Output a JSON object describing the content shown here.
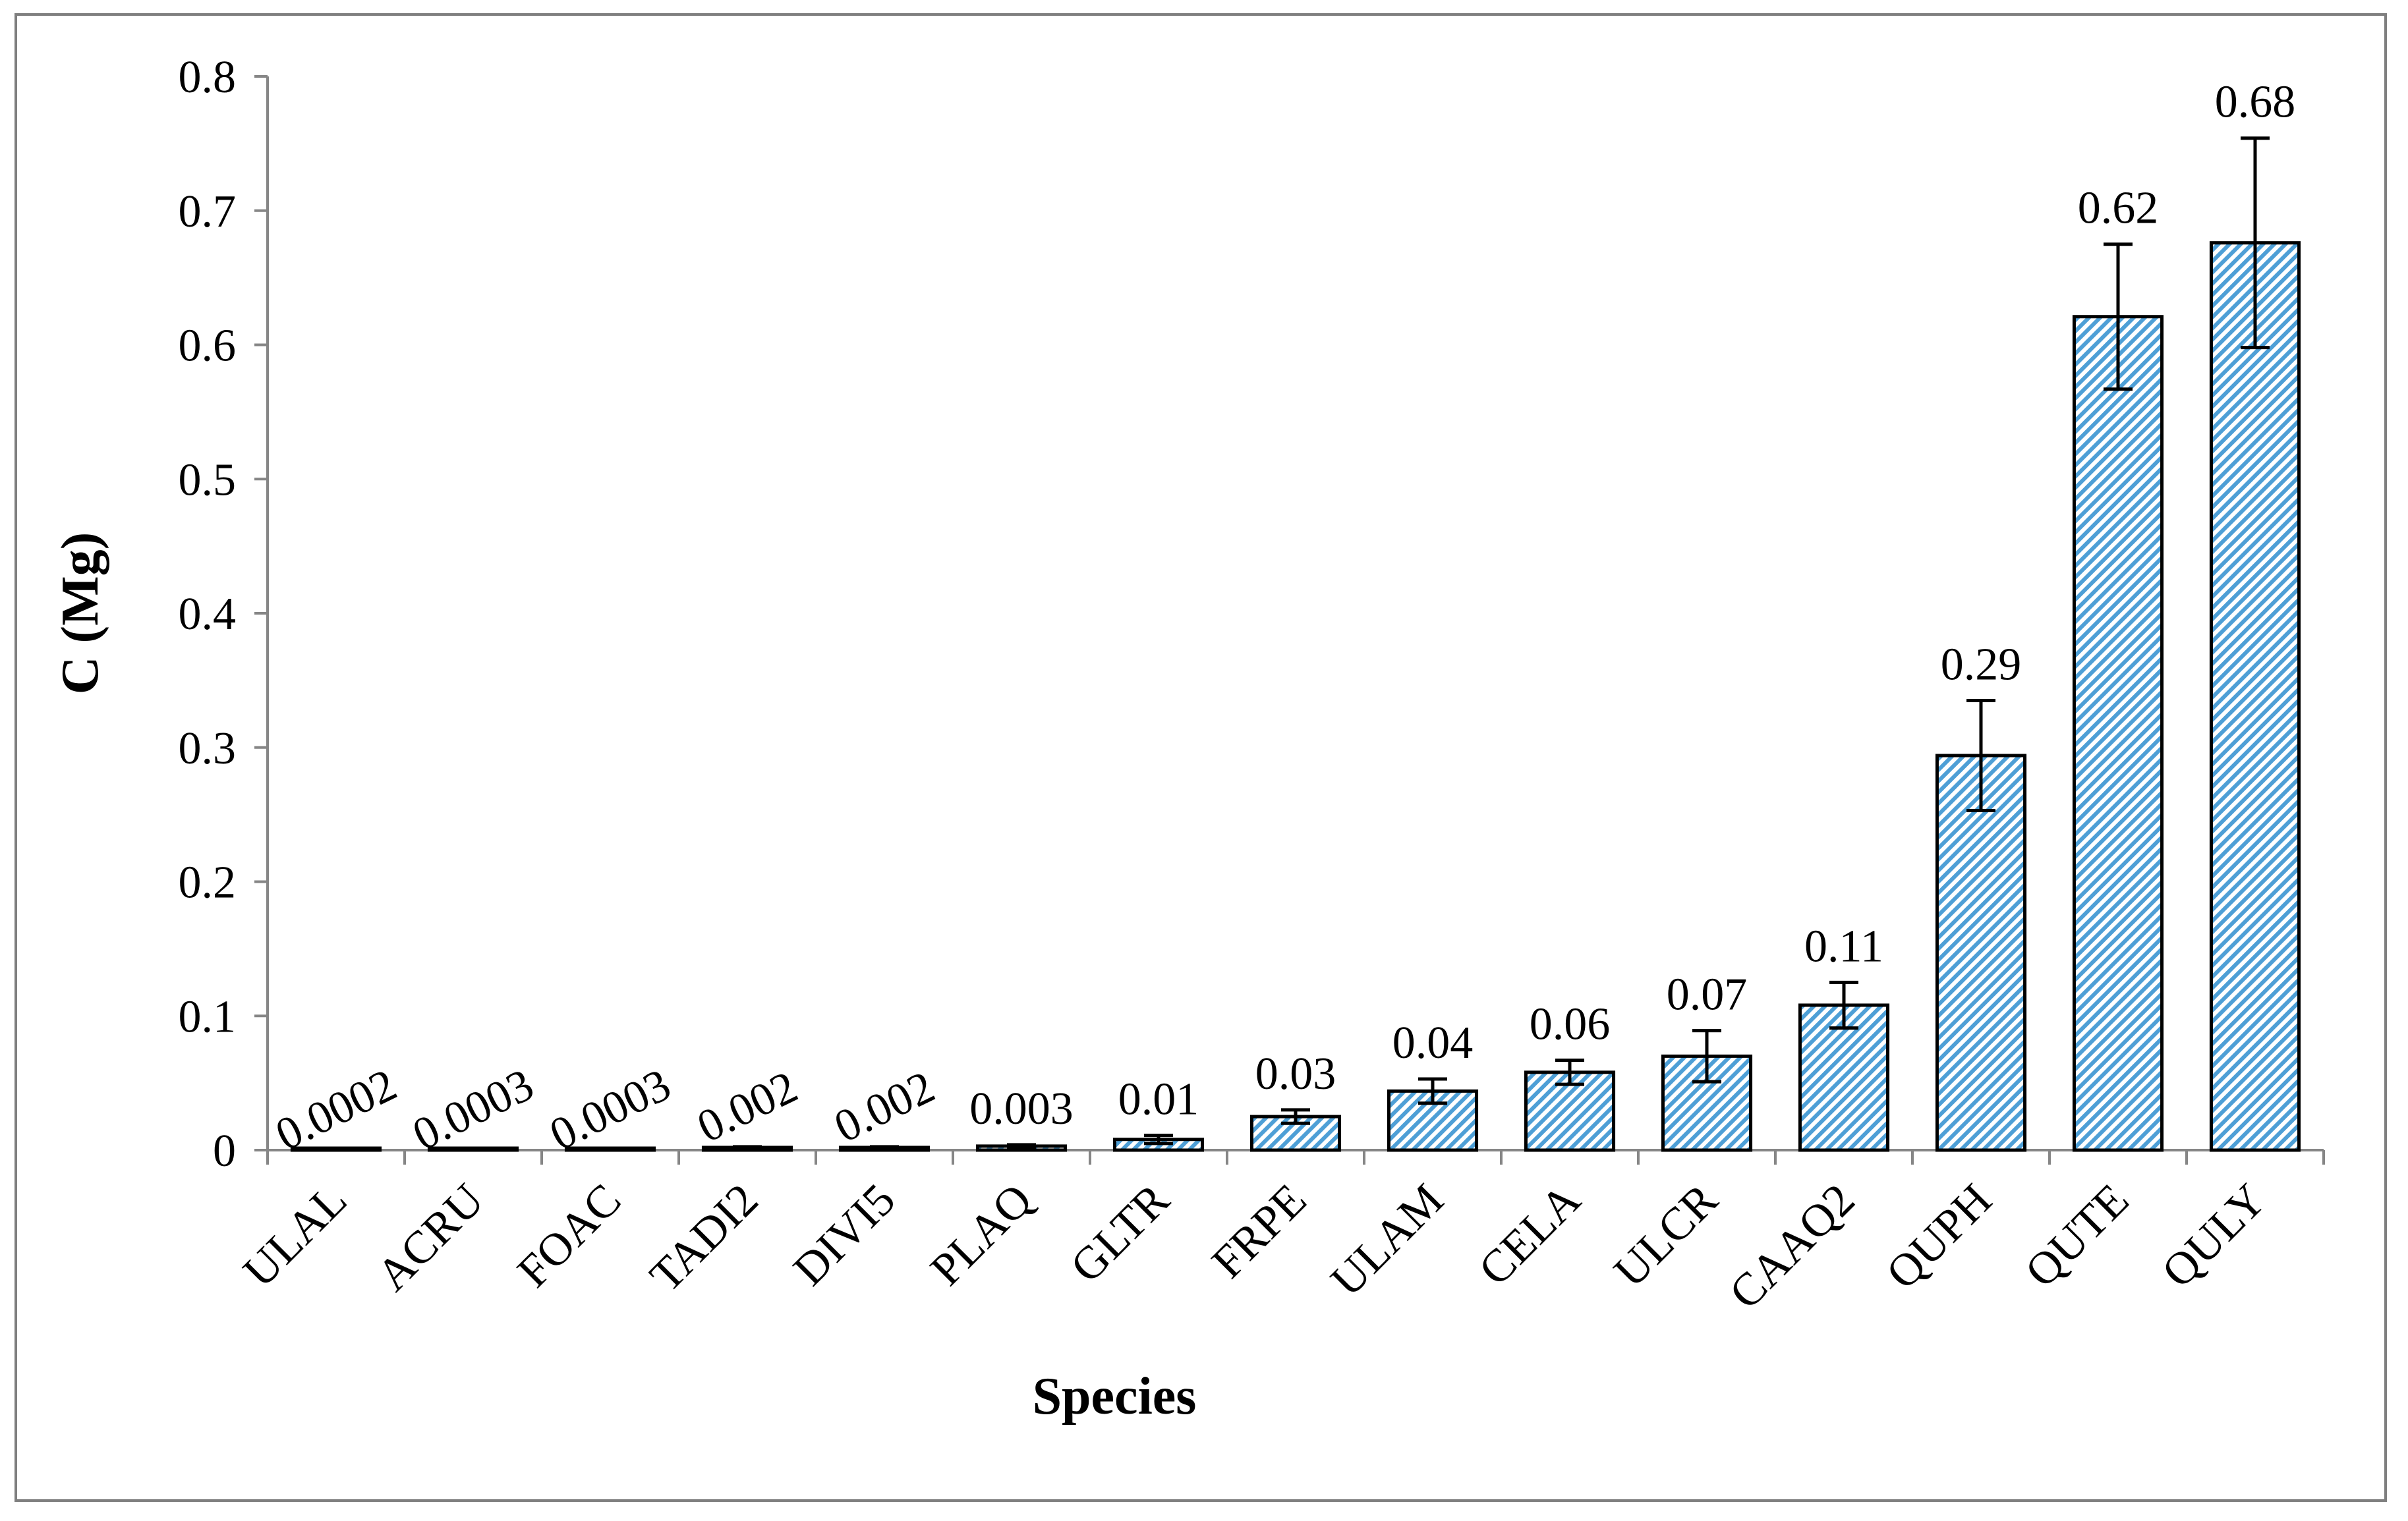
{
  "chart_data": {
    "type": "bar",
    "title": "",
    "xlabel": "Species",
    "ylabel": "C (Mg)",
    "ylim": [
      0,
      0.8
    ],
    "yticks": [
      0,
      0.1,
      0.2,
      0.3,
      0.4,
      0.5,
      0.6,
      0.7,
      0.8
    ],
    "ytick_labels": [
      "0",
      "0.1",
      "0.2",
      "0.3",
      "0.4",
      "0.5",
      "0.6",
      "0.7",
      "0.8"
    ],
    "grid": false,
    "bar_color": "#4e9fd6",
    "bar_pattern": "diagonal-hatch",
    "categories": [
      "ULAL",
      "ACRU",
      "FOAC",
      "TADI2",
      "DIVI5",
      "PLAQ",
      "GLTR",
      "FRPE",
      "ULAM",
      "CELA",
      "ULCR",
      "CAAQ2",
      "QUPH",
      "QUTE",
      "QULY"
    ],
    "values": [
      0.0002,
      0.0003,
      0.0003,
      0.002,
      0.002,
      0.003,
      0.008,
      0.025,
      0.044,
      0.058,
      0.07,
      0.108,
      0.294,
      0.621,
      0.676
    ],
    "errors": [
      0.0001,
      0.0001,
      0.0001,
      0.0005,
      0.0005,
      0.001,
      0.003,
      0.005,
      0.009,
      0.009,
      0.019,
      0.017,
      0.041,
      0.054,
      0.078
    ],
    "data_labels": [
      "0.0002",
      "0.0003",
      "0.0003",
      "0.002",
      "0.002",
      "0.003",
      "0.01",
      "0.03",
      "0.04",
      "0.06",
      "0.07",
      "0.11",
      "0.29",
      "0.62",
      "0.68"
    ]
  }
}
